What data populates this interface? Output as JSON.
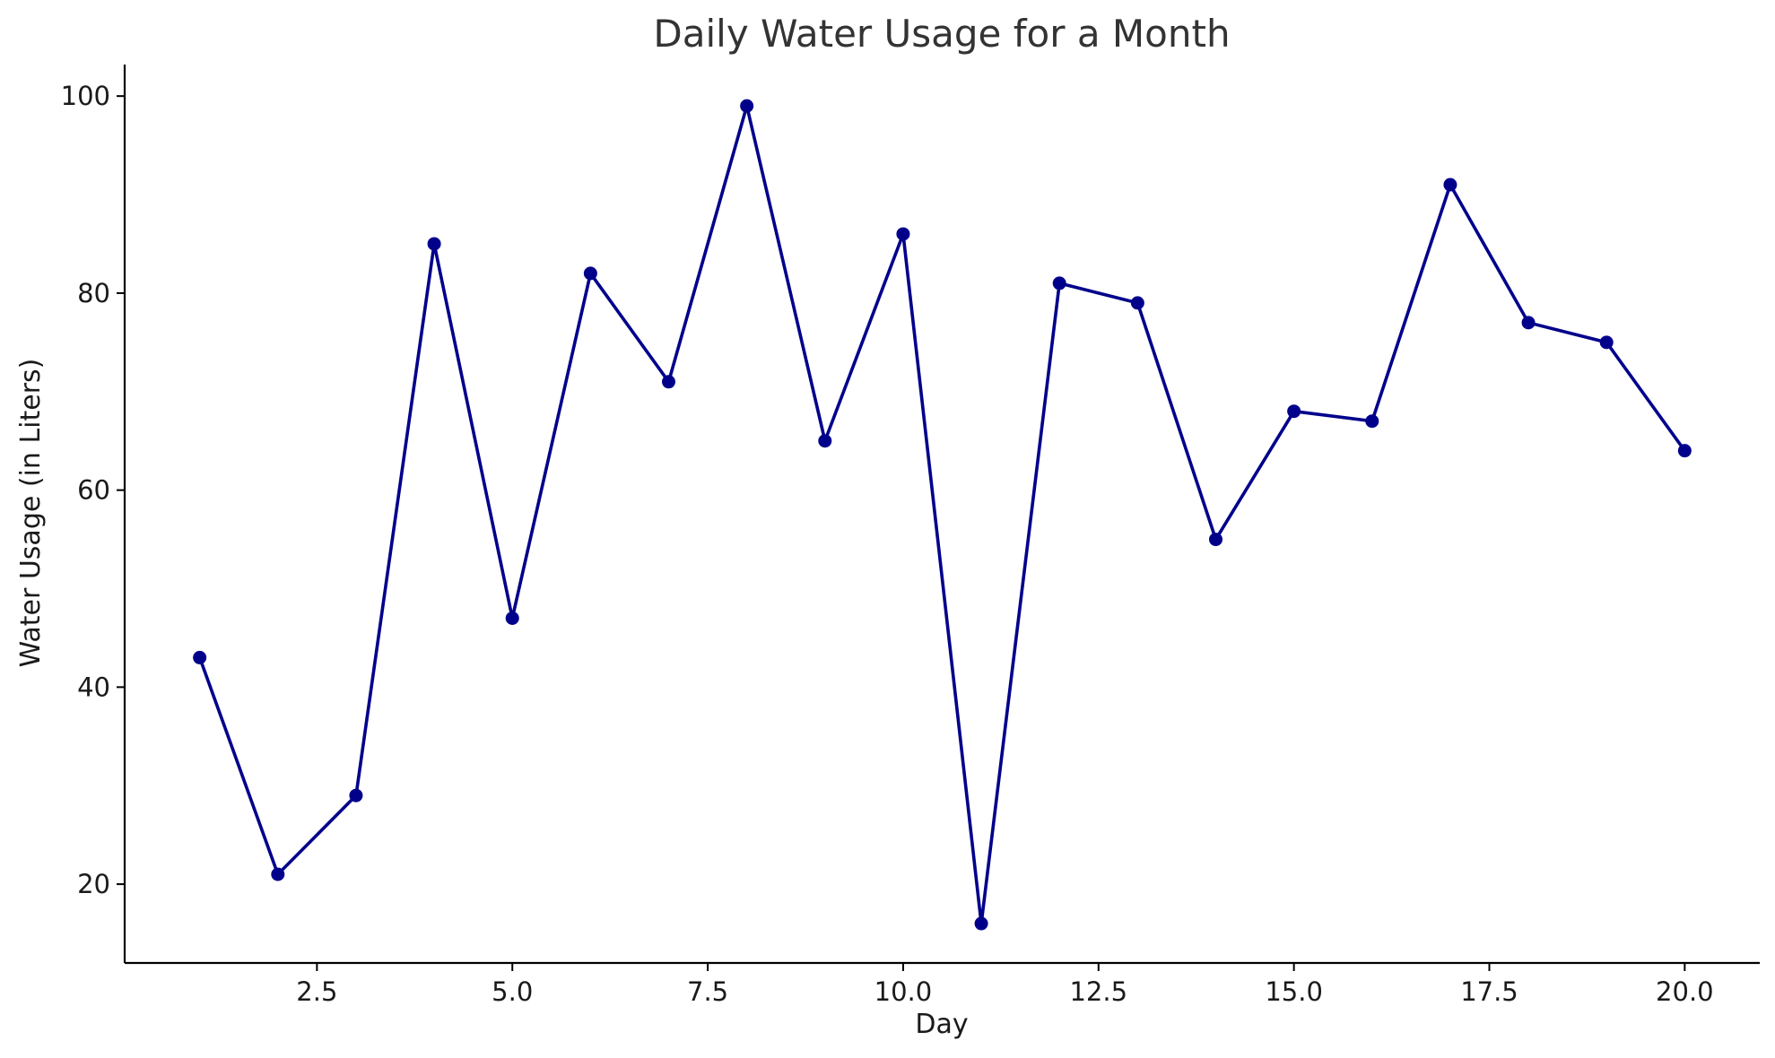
{
  "chart_data": {
    "type": "line",
    "title": "Daily Water Usage for a Month",
    "xlabel": "Day",
    "ylabel": "Water Usage (in Liters)",
    "xlim": [
      0.04,
      20.96
    ],
    "ylim": [
      12.0,
      103.2
    ],
    "xticks": [
      2.5,
      5.0,
      7.5,
      10.0,
      12.5,
      15.0,
      17.5,
      20.0
    ],
    "xtick_labels": [
      "2.5",
      "5.0",
      "7.5",
      "10.0",
      "12.5",
      "15.0",
      "17.5",
      "20.0"
    ],
    "yticks": [
      20,
      40,
      60,
      80,
      100
    ],
    "ytick_labels": [
      "20",
      "40",
      "60",
      "80",
      "100"
    ],
    "grid": false,
    "legend": false,
    "series": [
      {
        "color": "#00008b",
        "marker": "circle",
        "x": [
          1,
          2,
          3,
          4,
          5,
          6,
          7,
          8,
          9,
          10,
          11,
          12,
          13,
          14,
          15,
          16,
          17,
          18,
          19,
          20
        ],
        "y": [
          43,
          21,
          29,
          85,
          47,
          82,
          71,
          99,
          65,
          86,
          16,
          81,
          79,
          55,
          68,
          67,
          91,
          77,
          75,
          64
        ]
      }
    ]
  }
}
